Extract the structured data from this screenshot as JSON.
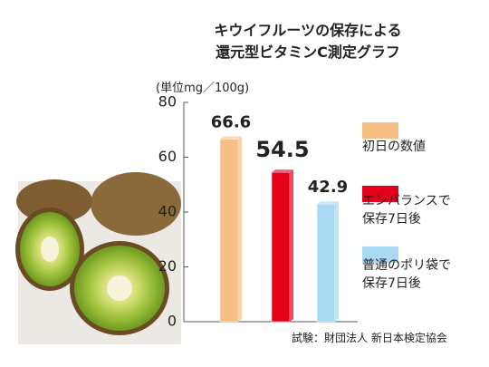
{
  "chart_data": {
    "type": "bar",
    "title": "キウイフルーツの保存による\n還元型ビタミンC測定グラフ",
    "y_label": "(単位mg／100g)",
    "categories": [
      null
    ],
    "series": [
      {
        "name": "初日の数値",
        "color": "#f7bf84",
        "values": [
          66.6
        ]
      },
      {
        "name": "エンバランスで\n保存7日後",
        "color": "#e2001a",
        "values": [
          54.5
        ]
      },
      {
        "name": "普通のポリ袋で\n保存7日後",
        "color": "#a9daf2",
        "values": [
          42.9
        ]
      }
    ],
    "ylim": [
      0,
      80
    ],
    "yticks": [
      0,
      20,
      40,
      60,
      80
    ],
    "source": "試験：財団法人 新日本検定協会"
  }
}
